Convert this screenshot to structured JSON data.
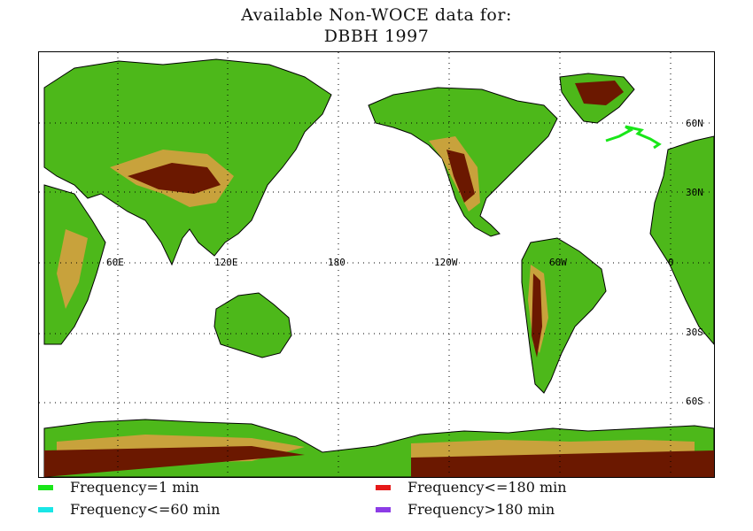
{
  "title": {
    "line1": "Available Non-WOCE data for:",
    "line2": "DBBH 1997"
  },
  "map": {
    "lon_labels": [
      "60E",
      "120E",
      "180",
      "120W",
      "60W",
      "0"
    ],
    "lat_labels": [
      "60N",
      "30N",
      "30S",
      "60S"
    ],
    "colors": {
      "ocean": "#ffffff",
      "lowland": "#4db81a",
      "midland": "#8cc028",
      "upland": "#c8a23c",
      "highland": "#6b1800",
      "coast": "#000000",
      "grid": "#000000",
      "track": "#19e619"
    }
  },
  "legend": [
    {
      "label": "Frequency=1 min",
      "color": "#19e619"
    },
    {
      "label": "Frequency<=60 min",
      "color": "#19e6e6"
    },
    {
      "label": "Frequency<=180 min",
      "color": "#e61919"
    },
    {
      "label": "Frequency>180 min",
      "color": "#8c3ce6"
    }
  ]
}
